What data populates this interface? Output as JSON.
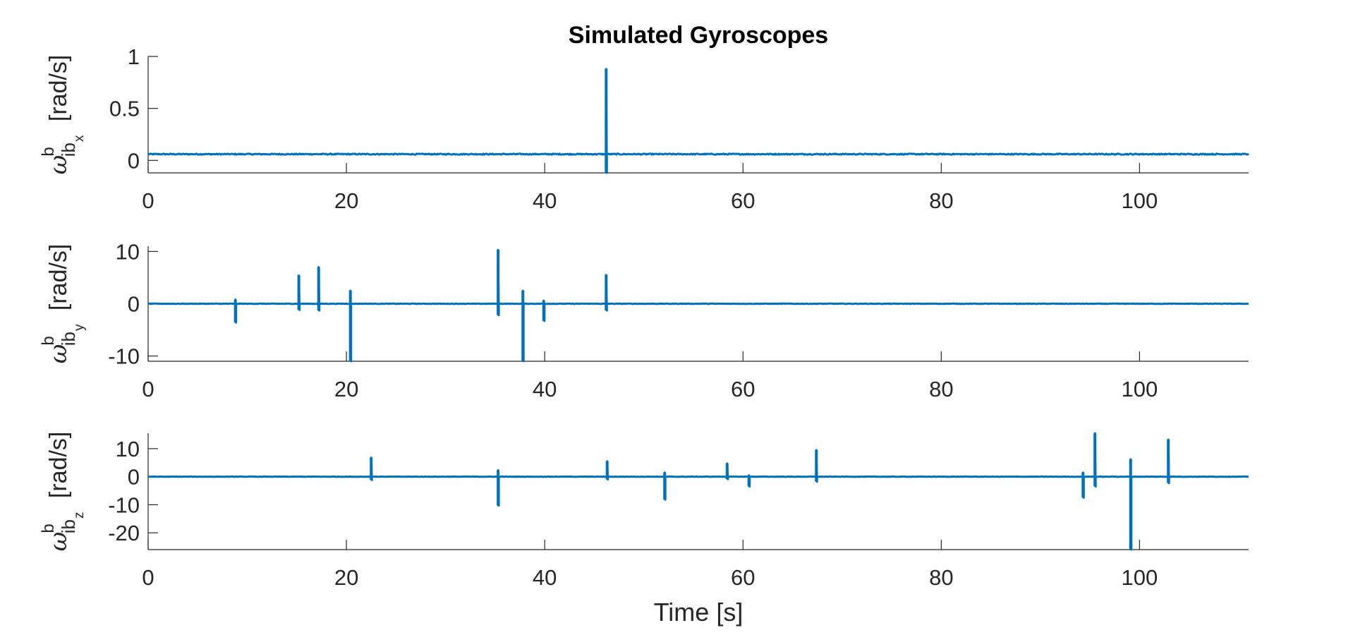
{
  "figure": {
    "title": "Simulated Gyroscopes",
    "xlabel": "Time [s]"
  },
  "chart_data": [
    {
      "type": "line",
      "title": "Simulated Gyroscopes",
      "xlabel": "",
      "ylabel": {
        "symbol": "ω",
        "superscript": "b",
        "subscript": "ib",
        "axis": "x",
        "unit": "[rad/s]"
      },
      "xlim": [
        0,
        111
      ],
      "ylim": [
        -0.12,
        1.0
      ],
      "xticks": [
        0,
        20,
        40,
        60,
        80,
        100
      ],
      "yticks": [
        0,
        0.5,
        1
      ],
      "ytick_labels": [
        "0",
        "0.5",
        "1"
      ],
      "color": "#0072BD",
      "grid": false,
      "baseline": 0.06,
      "noise": 0.005,
      "spikes": [
        {
          "t": 46.2,
          "max": 0.88,
          "min": -0.12
        }
      ]
    },
    {
      "type": "line",
      "title": "",
      "xlabel": "",
      "ylabel": {
        "symbol": "ω",
        "superscript": "b",
        "subscript": "ib",
        "axis": "y",
        "unit": "[rad/s]"
      },
      "xlim": [
        0,
        111
      ],
      "ylim": [
        -11,
        11
      ],
      "xticks": [
        0,
        20,
        40,
        60,
        80,
        100
      ],
      "yticks": [
        -10,
        0,
        10
      ],
      "ytick_labels": [
        "-10",
        "0",
        "10"
      ],
      "color": "#0072BD",
      "grid": false,
      "baseline": 0.0,
      "noise": 0.05,
      "spikes": [
        {
          "t": 8.8,
          "max": 0.8,
          "min": -3.6
        },
        {
          "t": 15.2,
          "max": 5.4,
          "min": -1.2
        },
        {
          "t": 17.2,
          "max": 7.0,
          "min": -1.3
        },
        {
          "t": 20.4,
          "max": 2.5,
          "min": -11.0
        },
        {
          "t": 35.3,
          "max": 10.3,
          "min": -2.2
        },
        {
          "t": 37.8,
          "max": 2.5,
          "min": -11.0
        },
        {
          "t": 39.9,
          "max": 0.6,
          "min": -3.3
        },
        {
          "t": 46.2,
          "max": 5.5,
          "min": -1.3
        }
      ]
    },
    {
      "type": "line",
      "title": "",
      "xlabel": "Time [s]",
      "ylabel": {
        "symbol": "ω",
        "superscript": "b",
        "subscript": "ib",
        "axis": "z",
        "unit": "[rad/s]"
      },
      "xlim": [
        0,
        111
      ],
      "ylim": [
        -26,
        15.5
      ],
      "xticks": [
        0,
        20,
        40,
        60,
        80,
        100
      ],
      "yticks": [
        -20,
        -10,
        0,
        10
      ],
      "ytick_labels": [
        "-20",
        "-10",
        "0",
        "10"
      ],
      "color": "#0072BD",
      "grid": false,
      "baseline": 0.0,
      "noise": 0.08,
      "spikes": [
        {
          "t": 22.5,
          "max": 6.8,
          "min": -1.2
        },
        {
          "t": 35.3,
          "max": 2.3,
          "min": -10.3
        },
        {
          "t": 46.3,
          "max": 5.5,
          "min": -1.0
        },
        {
          "t": 52.1,
          "max": 1.5,
          "min": -8.2
        },
        {
          "t": 58.4,
          "max": 4.7,
          "min": -0.9
        },
        {
          "t": 60.6,
          "max": 0.5,
          "min": -3.5
        },
        {
          "t": 67.4,
          "max": 9.5,
          "min": -1.8
        },
        {
          "t": 94.3,
          "max": 1.5,
          "min": -7.5
        },
        {
          "t": 95.5,
          "max": 15.5,
          "min": -3.5
        },
        {
          "t": 99.1,
          "max": 6.2,
          "min": -26.0
        },
        {
          "t": 102.9,
          "max": 13.2,
          "min": -2.3
        }
      ]
    }
  ]
}
